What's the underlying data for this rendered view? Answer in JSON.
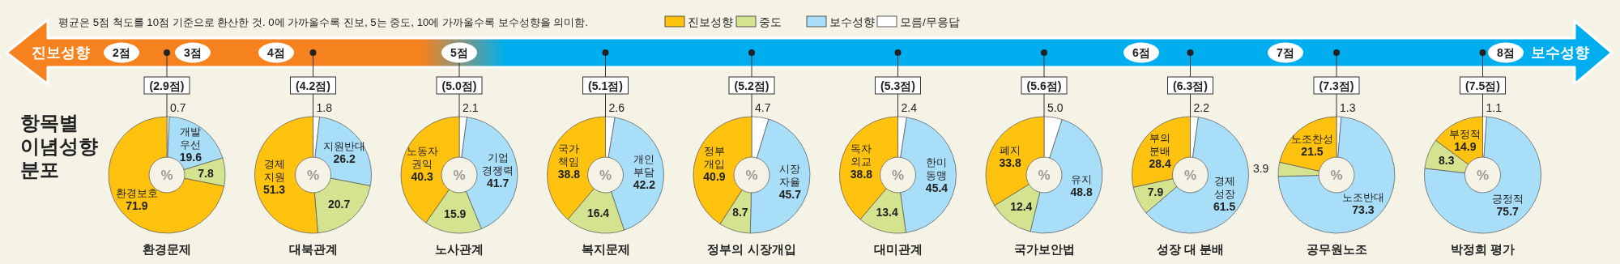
{
  "chart_data": [
    {
      "type": "other",
      "title": "항목별 이념성향 분포",
      "annotations": [
        "평균은 5점 척도를 10점 기준으로 환산한 것. 0에 가까울수록 진보, 5는 중도, 10에 가까울수록 보수성향을 의미함.",
        "진보성향",
        "2점",
        "3점",
        "4점",
        "5점",
        "6점",
        "7점",
        "8점",
        "보수성향"
      ],
      "series": [
        {
          "name": "진보성향",
          "color": "#ffc20e"
        },
        {
          "name": "중도",
          "color": "#d4e38f"
        },
        {
          "name": "보수성향",
          "color": "#a9def9"
        },
        {
          "name": "모름/무응답",
          "color": "#ffffff"
        }
      ],
      "legend": "top"
    },
    {
      "type": "pie",
      "title": "환경문제",
      "subtitle": "(2.9점)",
      "categories": [
        null,
        "개발 우선",
        null,
        "환경보호"
      ],
      "values": [
        0.7,
        19.6,
        7.8,
        71.9
      ],
      "colors": [
        "#ffffff",
        "#a9def9",
        "#d4e38f",
        "#ffc20e"
      ],
      "data_labels": true,
      "annotations": [
        "%"
      ]
    },
    {
      "type": "donut",
      "title": "대북관계",
      "subtitle": "(4.2점)",
      "categories": [
        null,
        "지원반대",
        null,
        "경제 지원"
      ],
      "values": [
        1.8,
        26.2,
        20.7,
        51.3
      ],
      "colors": [
        "#ffffff",
        "#a9def9",
        "#d4e38f",
        "#ffc20e"
      ],
      "data_labels": true,
      "annotations": [
        "%"
      ]
    },
    {
      "type": "donut",
      "title": "노사관계",
      "subtitle": "(5.0점)",
      "categories": [
        null,
        "기업 경쟁력",
        null,
        "노동자 권익"
      ],
      "values": [
        2.1,
        41.7,
        15.9,
        40.3
      ],
      "colors": [
        "#ffffff",
        "#a9def9",
        "#d4e38f",
        "#ffc20e"
      ],
      "data_labels": true,
      "annotations": [
        "%"
      ]
    },
    {
      "type": "donut",
      "title": "복지문제",
      "subtitle": "(5.1점)",
      "categories": [
        null,
        "개인 부담",
        null,
        "국가 책임"
      ],
      "values": [
        2.6,
        42.2,
        16.4,
        38.8
      ],
      "colors": [
        "#ffffff",
        "#a9def9",
        "#d4e38f",
        "#ffc20e"
      ],
      "data_labels": true,
      "annotations": [
        "%"
      ]
    },
    {
      "type": "donut",
      "title": "정부의 시장개입",
      "subtitle": "(5.2점)",
      "categories": [
        null,
        "시장 자율",
        null,
        "정부 개입"
      ],
      "values": [
        4.7,
        45.7,
        8.7,
        40.9
      ],
      "colors": [
        "#ffffff",
        "#a9def9",
        "#d4e38f",
        "#ffc20e"
      ],
      "data_labels": true,
      "annotations": [
        "%"
      ]
    },
    {
      "type": "donut",
      "title": "대미관계",
      "subtitle": "(5.3점)",
      "categories": [
        null,
        "한미 동맹",
        null,
        "독자 외교"
      ],
      "values": [
        2.4,
        45.4,
        13.4,
        38.8
      ],
      "colors": [
        "#ffffff",
        "#a9def9",
        "#d4e38f",
        "#ffc20e"
      ],
      "data_labels": true,
      "annotations": [
        "%"
      ]
    },
    {
      "type": "donut",
      "title": "국가보안법",
      "subtitle": "(5.6점)",
      "categories": [
        null,
        "유지",
        null,
        "폐지"
      ],
      "values": [
        5.0,
        48.8,
        12.4,
        33.8
      ],
      "colors": [
        "#ffffff",
        "#a9def9",
        "#d4e38f",
        "#ffc20e"
      ],
      "value_labels": [
        "5.0",
        "48.8",
        "12.4",
        "33.8"
      ],
      "annotations": [
        "%"
      ]
    },
    {
      "type": "donut",
      "title": "성장 대 분배",
      "subtitle": "(6.3점)",
      "categories": [
        null,
        "경제 성장",
        null,
        "부의 분배"
      ],
      "values": [
        2.2,
        61.5,
        7.9,
        28.4
      ],
      "colors": [
        "#ffffff",
        "#a9def9",
        "#d4e38f",
        "#ffc20e"
      ],
      "data_labels": true,
      "annotations": [
        "%"
      ]
    },
    {
      "type": "donut",
      "title": "공무원노조",
      "subtitle": "(7.3점)",
      "categories": [
        null,
        "노조반대",
        null,
        "노조찬성"
      ],
      "values": [
        1.3,
        73.3,
        3.9,
        21.5
      ],
      "colors": [
        "#ffffff",
        "#a9def9",
        "#d4e38f",
        "#ffc20e"
      ],
      "data_labels": true,
      "annotations": [
        "%"
      ]
    },
    {
      "type": "donut",
      "title": "박정희 평가",
      "subtitle": "(7.5점)",
      "categories": [
        null,
        "긍정적",
        null,
        "부정적"
      ],
      "values": [
        1.1,
        75.7,
        8.3,
        14.9
      ],
      "colors": [
        "#ffffff",
        "#a9def9",
        "#d4e38f",
        "#ffc20e"
      ],
      "data_labels": true,
      "annotations": [
        "%"
      ]
    }
  ]
}
